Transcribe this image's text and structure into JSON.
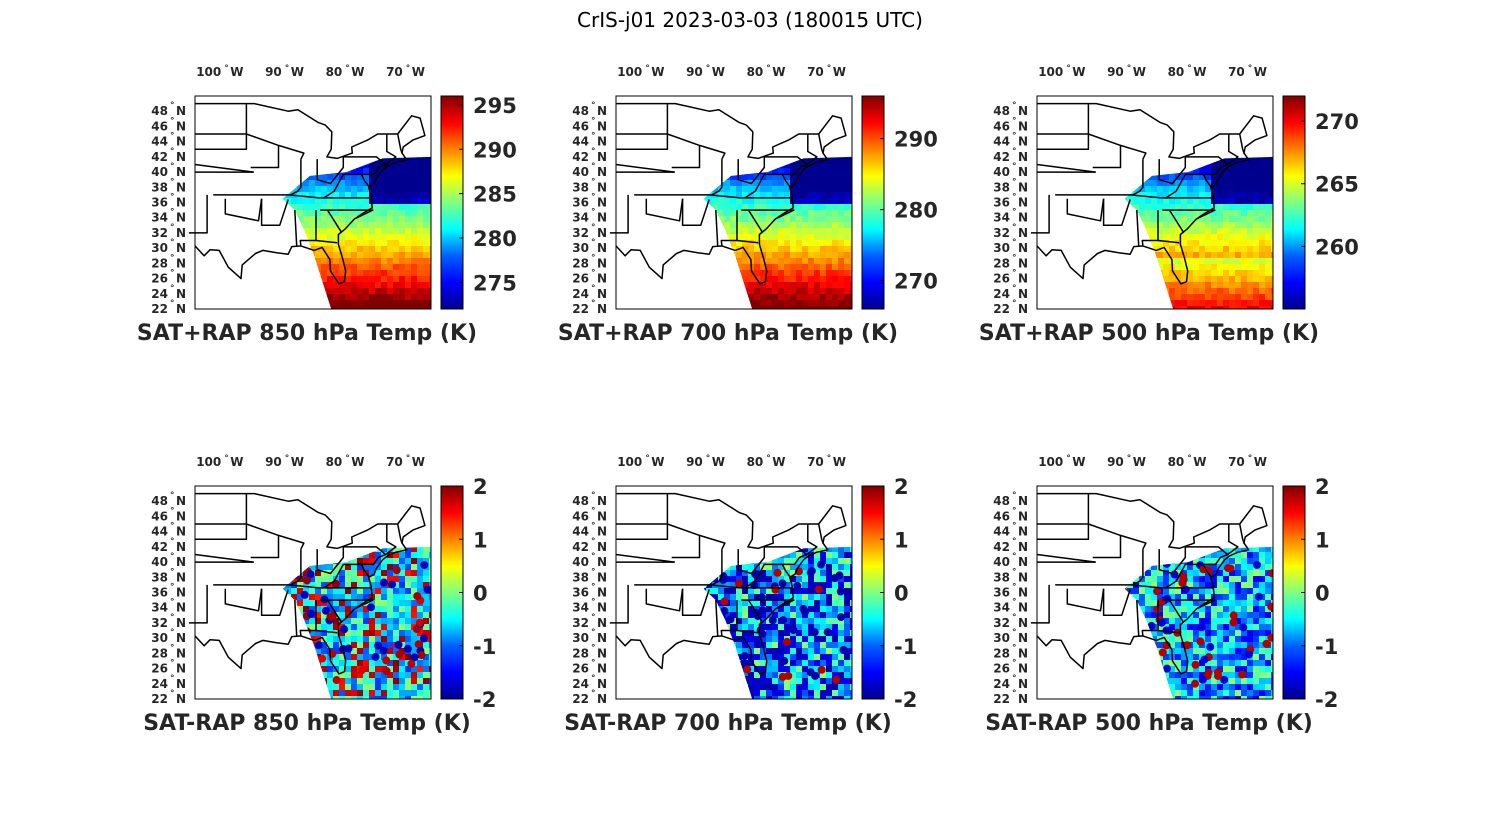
{
  "figure": {
    "title": "CrIS-j01 2023-03-03 (180015 UTC)"
  },
  "colors": {
    "jet": [
      "#00008f",
      "#0000ff",
      "#0080ff",
      "#00ffff",
      "#80ff80",
      "#ffff00",
      "#ff8000",
      "#ff0000",
      "#800000"
    ]
  },
  "chart_data": [
    {
      "type": "heatmap",
      "title": "SAT+RAP 850 hPa Temp (K)",
      "lon_ticks": [
        "100",
        "90",
        "80",
        "70"
      ],
      "lon_unit": "W",
      "lat_ticks": [
        "48",
        "46",
        "44",
        "42",
        "40",
        "38",
        "36",
        "34",
        "32",
        "30",
        "28",
        "26",
        "24",
        "22"
      ],
      "lat_unit": "N",
      "colorbar": {
        "ticks": [
          "295",
          "290",
          "285",
          "280",
          "275"
        ],
        "range": [
          272,
          296
        ]
      },
      "field": "sum"
    },
    {
      "type": "heatmap",
      "title": "SAT+RAP 700 hPa Temp (K)",
      "lon_ticks": [
        "100",
        "90",
        "80",
        "70"
      ],
      "lon_unit": "W",
      "lat_ticks": [
        "48",
        "46",
        "44",
        "42",
        "40",
        "38",
        "36",
        "34",
        "32",
        "30",
        "28",
        "26",
        "24",
        "22"
      ],
      "lat_unit": "N",
      "colorbar": {
        "ticks": [
          "290",
          "280",
          "270"
        ],
        "range": [
          266,
          296
        ]
      },
      "field": "sum"
    },
    {
      "type": "heatmap",
      "title": "SAT+RAP 500 hPa Temp (K)",
      "lon_ticks": [
        "100",
        "90",
        "80",
        "70"
      ],
      "lon_unit": "W",
      "lat_ticks": [
        "48",
        "46",
        "44",
        "42",
        "40",
        "38",
        "36",
        "34",
        "32",
        "30",
        "28",
        "26",
        "24",
        "22"
      ],
      "lat_unit": "N",
      "colorbar": {
        "ticks": [
          "270",
          "265",
          "260"
        ],
        "range": [
          255,
          272
        ]
      },
      "field": "sum"
    },
    {
      "type": "heatmap",
      "title": "SAT-RAP 850 hPa Temp (K)",
      "lon_ticks": [
        "100",
        "90",
        "80",
        "70"
      ],
      "lon_unit": "W",
      "lat_ticks": [
        "48",
        "46",
        "44",
        "42",
        "40",
        "38",
        "36",
        "34",
        "32",
        "30",
        "28",
        "26",
        "24",
        "22"
      ],
      "lat_unit": "N",
      "colorbar": {
        "ticks": [
          "2",
          "1",
          "0",
          "-1",
          "-2"
        ],
        "range": [
          -2,
          2
        ]
      },
      "field": "diff"
    },
    {
      "type": "heatmap",
      "title": "SAT-RAP 700 hPa Temp (K)",
      "lon_ticks": [
        "100",
        "90",
        "80",
        "70"
      ],
      "lon_unit": "W",
      "lat_ticks": [
        "48",
        "46",
        "44",
        "42",
        "40",
        "38",
        "36",
        "34",
        "32",
        "30",
        "28",
        "26",
        "24",
        "22"
      ],
      "lat_unit": "N",
      "colorbar": {
        "ticks": [
          "2",
          "1",
          "0",
          "-1",
          "-2"
        ],
        "range": [
          -2,
          2
        ]
      },
      "field": "diff"
    },
    {
      "type": "heatmap",
      "title": "SAT-RAP 500 hPa Temp (K)",
      "lon_ticks": [
        "100",
        "90",
        "80",
        "70"
      ],
      "lon_unit": "W",
      "lat_ticks": [
        "48",
        "46",
        "44",
        "42",
        "40",
        "38",
        "36",
        "34",
        "32",
        "30",
        "28",
        "26",
        "24",
        "22"
      ],
      "lat_unit": "N",
      "colorbar": {
        "ticks": [
          "2",
          "1",
          "0",
          "-1",
          "-2"
        ],
        "range": [
          -2,
          2
        ]
      },
      "field": "diff"
    }
  ]
}
